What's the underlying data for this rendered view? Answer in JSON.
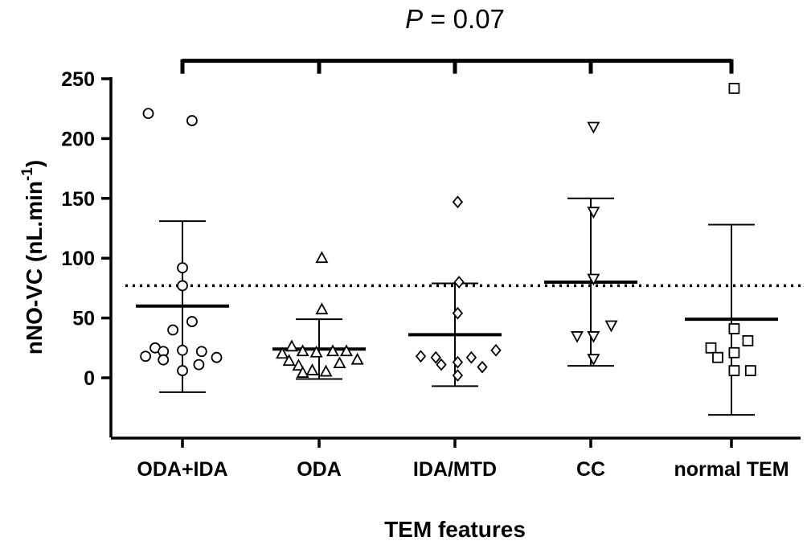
{
  "annotation": {
    "p_symbol": "P",
    "p_text": " = 0.07"
  },
  "chart_data": {
    "type": "scatter",
    "title": "",
    "xlabel": "TEM features",
    "ylabel_main": "nNO-VC (nL.min",
    "ylabel_sup": "-1",
    "ylabel_close": ")",
    "ylim": [
      -50,
      250
    ],
    "yticks": [
      0,
      50,
      100,
      150,
      200,
      250
    ],
    "ytick_labels": [
      "0",
      "50",
      "100",
      "150",
      "200",
      "250"
    ],
    "grid": false,
    "reference_line": {
      "value": 77,
      "style": "dotted"
    },
    "bracket": {
      "value": 265,
      "spans_from": "ODA+IDA",
      "spans_to": "normal TEM"
    },
    "categories": [
      "ODA+IDA",
      "ODA",
      "IDA/MTD",
      "CC",
      "normal TEM"
    ],
    "series": [
      {
        "marker": "circle",
        "points": [
          [
            -0.25,
            221
          ],
          [
            0.07,
            215
          ],
          [
            0,
            92
          ],
          [
            0,
            77
          ],
          [
            0.07,
            47
          ],
          [
            -0.07,
            40
          ],
          [
            -0.2,
            25
          ],
          [
            -0.14,
            22
          ],
          [
            0,
            23
          ],
          [
            0.14,
            22
          ],
          [
            -0.27,
            18
          ],
          [
            -0.14,
            15
          ],
          [
            0.25,
            17
          ],
          [
            0.12,
            11
          ],
          [
            0,
            6
          ]
        ],
        "mean": 60,
        "sd_upper": 131,
        "sd_lower": -12
      },
      {
        "marker": "triangle-up",
        "points": [
          [
            0.02,
            100
          ],
          [
            0.02,
            57
          ],
          [
            -0.27,
            20
          ],
          [
            -0.2,
            26
          ],
          [
            -0.12,
            22
          ],
          [
            -0.02,
            21
          ],
          [
            0.1,
            22
          ],
          [
            0.2,
            22
          ],
          [
            -0.22,
            14
          ],
          [
            -0.15,
            10
          ],
          [
            0.15,
            12
          ],
          [
            0.28,
            15
          ],
          [
            -0.05,
            6
          ],
          [
            0.05,
            5
          ],
          [
            -0.12,
            4
          ]
        ],
        "mean": 24,
        "sd_upper": 49,
        "sd_lower": -1
      },
      {
        "marker": "diamond",
        "points": [
          [
            0.02,
            147
          ],
          [
            0.03,
            80
          ],
          [
            0.02,
            54
          ],
          [
            -0.25,
            18
          ],
          [
            -0.14,
            17
          ],
          [
            0.12,
            17
          ],
          [
            0.3,
            23
          ],
          [
            0.02,
            13
          ],
          [
            -0.1,
            11
          ],
          [
            0.2,
            9
          ],
          [
            0.02,
            2
          ]
        ],
        "mean": 36,
        "sd_upper": 79,
        "sd_lower": -7
      },
      {
        "marker": "triangle-down",
        "points": [
          [
            0.02,
            210
          ],
          [
            0.02,
            139
          ],
          [
            0.02,
            83
          ],
          [
            -0.1,
            35
          ],
          [
            0.02,
            35
          ],
          [
            0.15,
            44
          ],
          [
            0.02,
            16
          ]
        ],
        "mean": 80,
        "sd_upper": 150,
        "sd_lower": 10
      },
      {
        "marker": "square",
        "points": [
          [
            0.02,
            242
          ],
          [
            0.02,
            41
          ],
          [
            -0.15,
            25
          ],
          [
            0.12,
            31
          ],
          [
            -0.1,
            17
          ],
          [
            0.02,
            21
          ],
          [
            0.02,
            6
          ],
          [
            0.14,
            6
          ]
        ],
        "mean": 49,
        "sd_upper": 128,
        "sd_lower": -31
      }
    ]
  }
}
